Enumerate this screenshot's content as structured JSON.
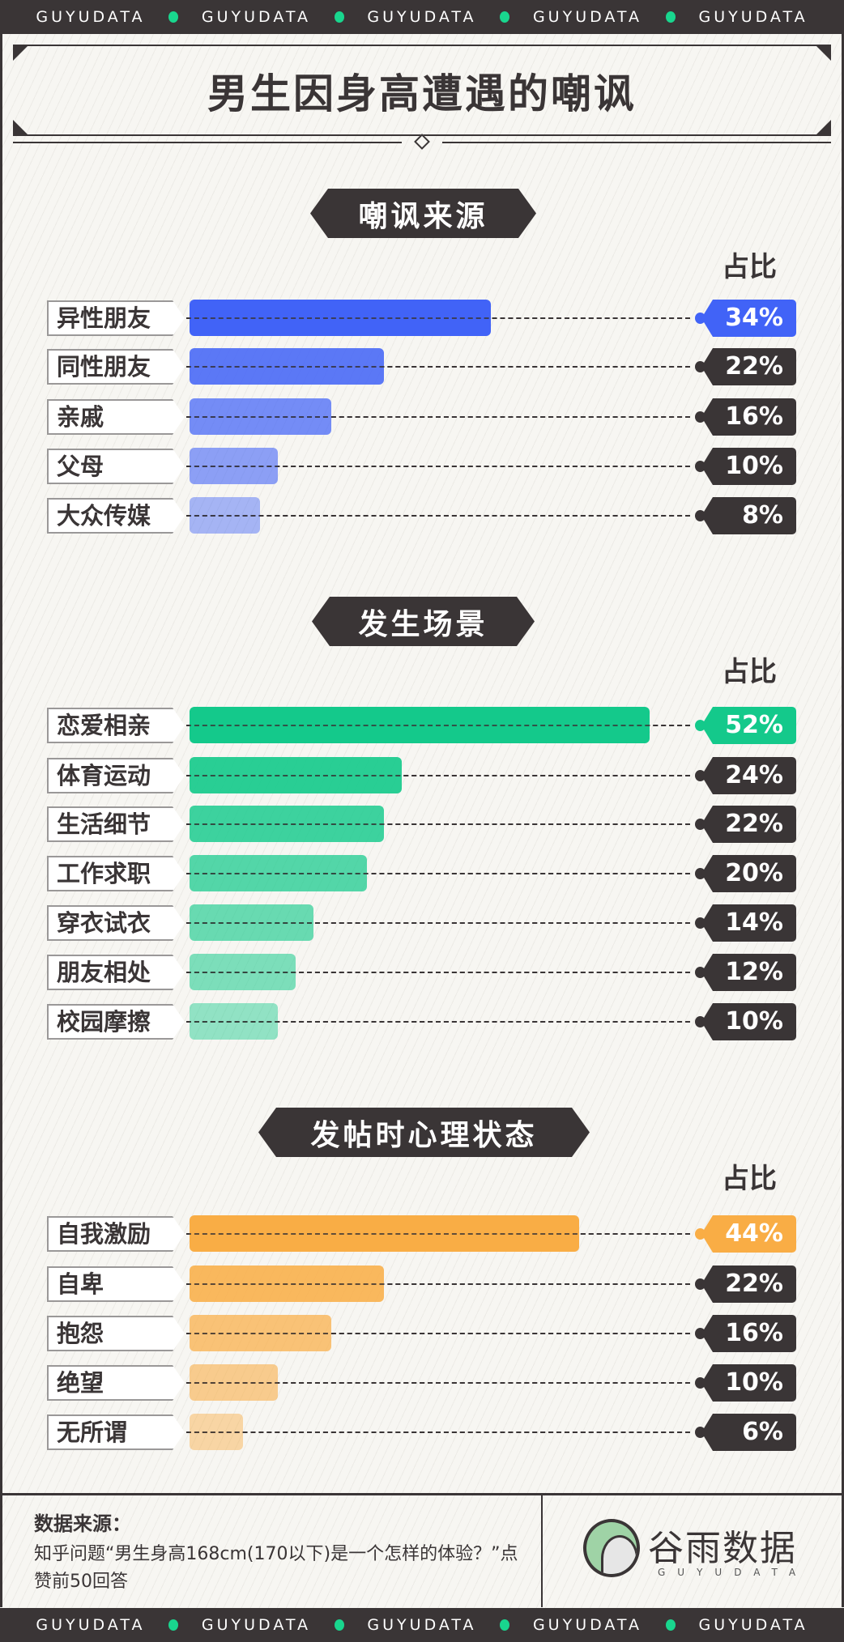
{
  "brand": {
    "strip_text": "GUYUDATA",
    "logo_name": "谷雨数据",
    "logo_sub": "GUYUDATA"
  },
  "title": "男生因身高遭遇的嘲讽",
  "ratio_label": "占比",
  "colors": {
    "dark": "#3a3536",
    "blue": "#4163f7",
    "green": "#14c98b",
    "orange": "#f9ad45"
  },
  "chart_data": [
    {
      "type": "bar",
      "title": "嘲讽来源",
      "color": "#4163f7",
      "categories": [
        "异性朋友",
        "同性朋友",
        "亲戚",
        "父母",
        "大众传媒"
      ],
      "values": [
        34,
        22,
        16,
        10,
        8
      ],
      "labels": [
        "34%",
        "22%",
        "16%",
        "10%",
        "8%"
      ]
    },
    {
      "type": "bar",
      "title": "发生场景",
      "color": "#14c98b",
      "categories": [
        "恋爱相亲",
        "体育运动",
        "生活细节",
        "工作求职",
        "穿衣试衣",
        "朋友相处",
        "校园摩擦"
      ],
      "values": [
        52,
        24,
        22,
        20,
        14,
        12,
        10
      ],
      "labels": [
        "52%",
        "24%",
        "22%",
        "20%",
        "14%",
        "12%",
        "10%"
      ]
    },
    {
      "type": "bar",
      "title": "发帖时心理状态",
      "color": "#f9ad45",
      "categories": [
        "自我激励",
        "自卑",
        "抱怨",
        "绝望",
        "无所谓"
      ],
      "values": [
        44,
        22,
        16,
        10,
        6
      ],
      "labels": [
        "44%",
        "22%",
        "16%",
        "10%",
        "6%"
      ]
    }
  ],
  "source": {
    "label": "数据来源：",
    "text": "知乎问题“男生身高168cm(170以下)是一个怎样的体验？”点赞前50回答"
  }
}
